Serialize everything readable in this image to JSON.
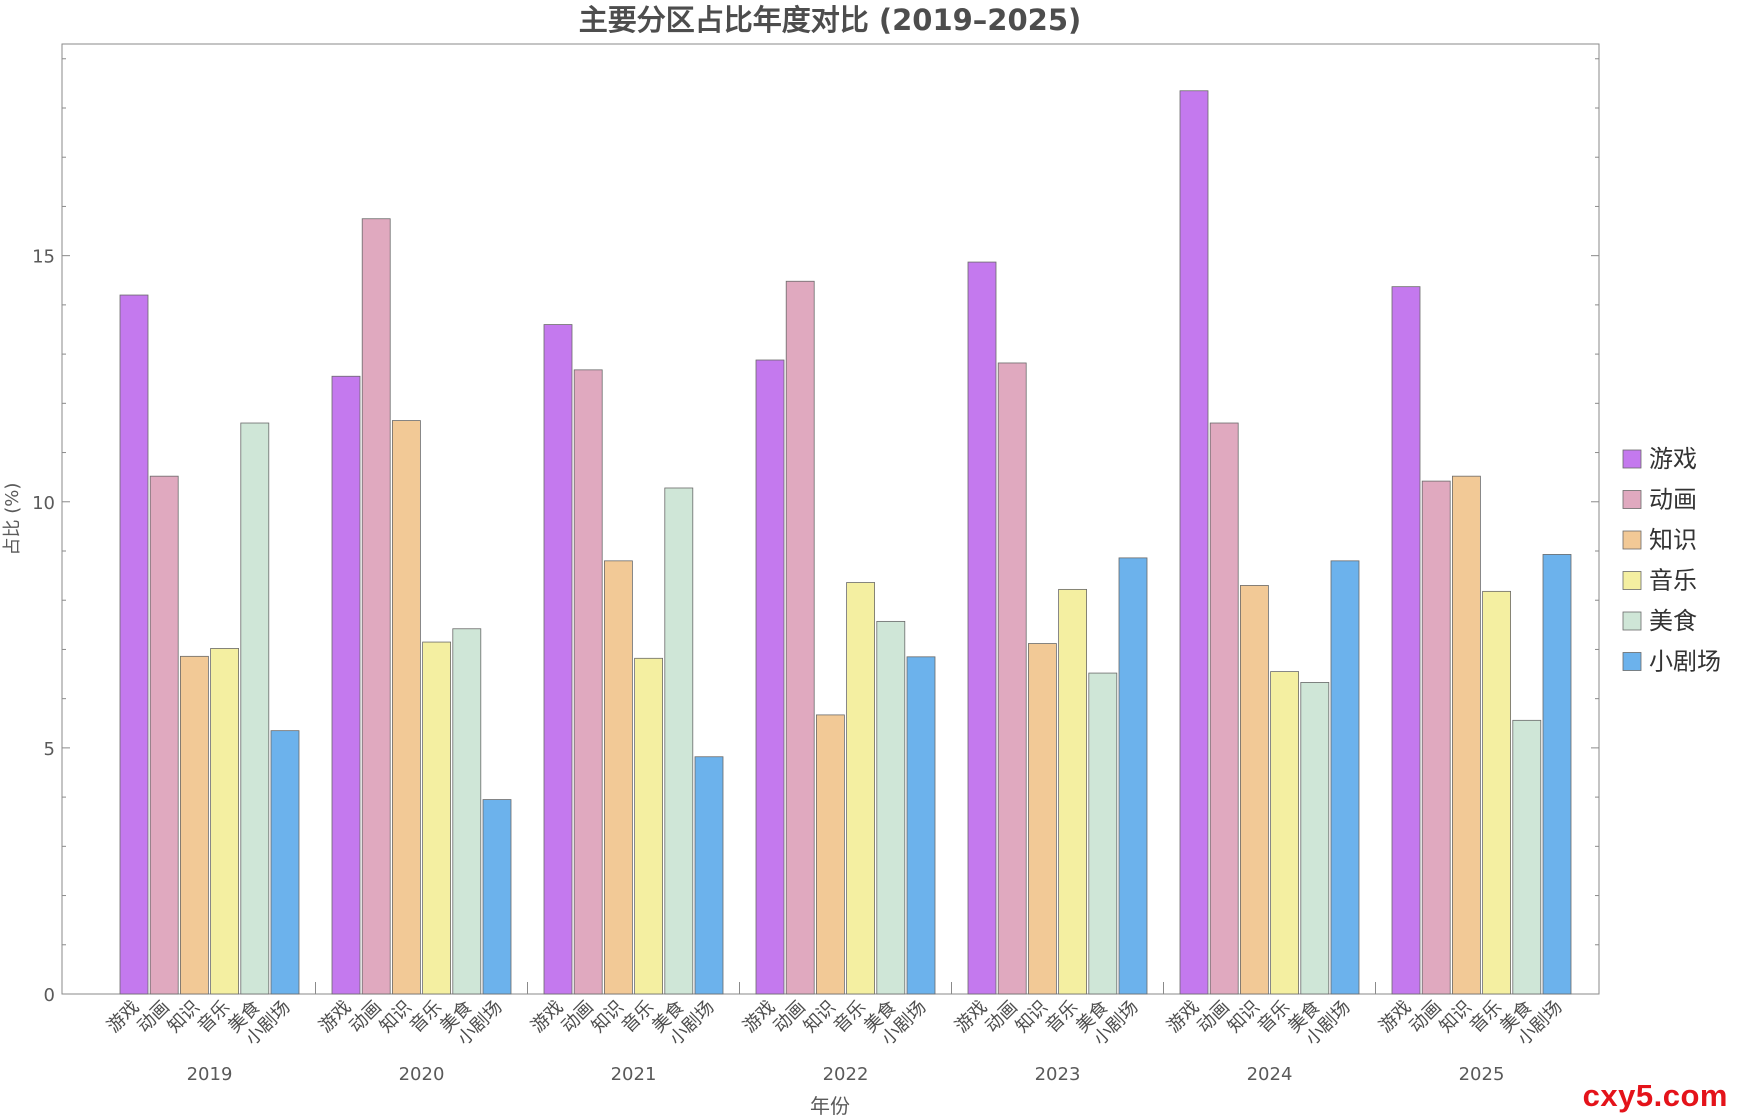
{
  "chart_data": {
    "type": "bar",
    "title": "主要分区占比年度对比 (2019–2025)",
    "xlabel": "年份",
    "ylabel": "占比 (%)",
    "ylim": [
      0,
      19.3
    ],
    "yticks": [
      0,
      5,
      10,
      15
    ],
    "grid": false,
    "legend_position": "right",
    "categories": [
      "2019",
      "2020",
      "2021",
      "2022",
      "2023",
      "2024",
      "2025"
    ],
    "series": [
      {
        "name": "游戏",
        "color": "#C479EE",
        "values": [
          14.2,
          12.55,
          13.6,
          12.88,
          14.87,
          18.35,
          14.37
        ]
      },
      {
        "name": "动画",
        "color": "#E0A9BF",
        "values": [
          10.52,
          15.75,
          12.68,
          14.48,
          12.82,
          11.6,
          10.42
        ]
      },
      {
        "name": "知识",
        "color": "#F2C996",
        "values": [
          6.86,
          11.65,
          8.8,
          5.67,
          7.12,
          8.3,
          10.52
        ]
      },
      {
        "name": "音乐",
        "color": "#F4EFA1",
        "values": [
          7.02,
          7.15,
          6.82,
          8.36,
          8.22,
          6.55,
          8.18
        ]
      },
      {
        "name": "美食",
        "color": "#CFE6D7",
        "values": [
          11.6,
          7.42,
          10.28,
          7.57,
          6.52,
          6.33,
          5.56
        ]
      },
      {
        "name": "小剧场",
        "color": "#6CB2EC",
        "values": [
          5.35,
          3.95,
          4.82,
          6.85,
          8.86,
          8.8,
          8.93
        ]
      }
    ]
  },
  "watermark": "cxy5.com"
}
